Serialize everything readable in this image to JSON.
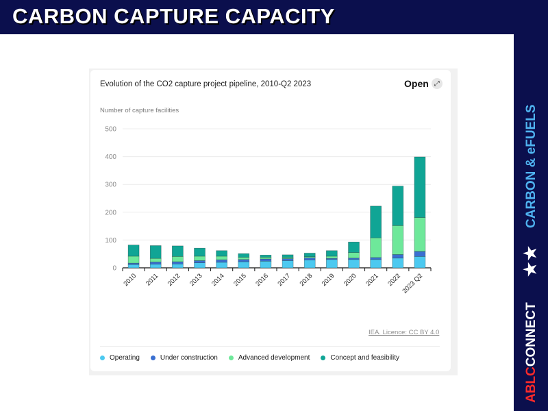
{
  "header": {
    "title": "CARBON CAPTURE CAPACITY"
  },
  "sidebar": {
    "section_label": "CARBON & eFUELS",
    "stars": "★★",
    "brand_red": "ABLC",
    "brand_white": "CONNECT"
  },
  "card": {
    "title": "Evolution of the CO2 capture project pipeline, 2010-Q2 2023",
    "open_label": "Open",
    "open_icon": "expand-icon",
    "source": "IEA. Licence: CC BY 4.0"
  },
  "colors": {
    "header_bg": "#0b0f4d",
    "operating": "#4cc9f0",
    "under_construction": "#3a6fd1",
    "advanced_development": "#6ee89a",
    "concept_and_feasibility": "#10a595"
  },
  "chart_data": {
    "type": "bar",
    "stacked": true,
    "title": "Evolution of the CO2 capture project pipeline, 2010-Q2 2023",
    "xlabel": "",
    "ylabel": "Number of capture facilities",
    "ylim": [
      0,
      500
    ],
    "yticks": [
      0,
      100,
      200,
      300,
      400,
      500
    ],
    "grid": true,
    "legend_position": "bottom",
    "categories": [
      "2010",
      "2011",
      "2012",
      "2013",
      "2014",
      "2015",
      "2016",
      "2017",
      "2018",
      "2019",
      "2020",
      "2021",
      "2022",
      "2023 Q2"
    ],
    "series": [
      {
        "name": "Operating",
        "color": "#4cc9f0",
        "values": [
          12,
          13,
          14,
          18,
          20,
          22,
          24,
          26,
          28,
          30,
          30,
          30,
          35,
          41
        ]
      },
      {
        "name": "Under construction",
        "color": "#3a6fd1",
        "values": [
          5,
          8,
          8,
          8,
          9,
          8,
          8,
          7,
          8,
          4,
          5,
          7,
          13,
          18
        ]
      },
      {
        "name": "Advanced development",
        "color": "#6ee89a",
        "values": [
          25,
          13,
          19,
          16,
          13,
          8,
          6,
          4,
          4,
          8,
          20,
          71,
          104,
          122
        ]
      },
      {
        "name": "Concept and feasibility",
        "color": "#10a595",
        "values": [
          40,
          46,
          38,
          29,
          20,
          13,
          8,
          10,
          13,
          20,
          38,
          114,
          142,
          218
        ]
      }
    ]
  }
}
